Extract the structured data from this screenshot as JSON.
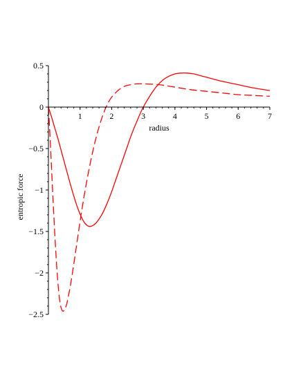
{
  "chart_data": {
    "type": "line",
    "title": "",
    "xlabel": "radius",
    "ylabel": "entropic force",
    "xlim": [
      0,
      7
    ],
    "ylim": [
      -2.5,
      0.5
    ],
    "x_ticks": [
      1,
      2,
      3,
      4,
      5,
      6,
      7
    ],
    "y_ticks": [
      0.5,
      0,
      -0.5,
      -1,
      -1.5,
      -2,
      -2.5
    ],
    "x_tick_labels": [
      "1",
      "2",
      "3",
      "4",
      "5",
      "6",
      "7"
    ],
    "y_tick_labels": [
      "0.5",
      "0",
      "−0.5",
      "−1",
      "−1.5",
      "−2",
      "−2.5"
    ],
    "grid": false,
    "legend": "none",
    "series": [
      {
        "style": "solid",
        "color": "#ff0000",
        "points": [
          [
            0,
            0
          ],
          [
            0.1,
            -0.12
          ],
          [
            0.2,
            -0.25
          ],
          [
            0.3,
            -0.38
          ],
          [
            0.4,
            -0.52
          ],
          [
            0.5,
            -0.66
          ],
          [
            0.6,
            -0.8
          ],
          [
            0.7,
            -0.94
          ],
          [
            0.8,
            -1.07
          ],
          [
            0.9,
            -1.19
          ],
          [
            1.0,
            -1.29
          ],
          [
            1.1,
            -1.37
          ],
          [
            1.2,
            -1.42
          ],
          [
            1.3,
            -1.44
          ],
          [
            1.4,
            -1.43
          ],
          [
            1.5,
            -1.4
          ],
          [
            1.6,
            -1.35
          ],
          [
            1.7,
            -1.29
          ],
          [
            1.8,
            -1.21
          ],
          [
            1.9,
            -1.12
          ],
          [
            2.0,
            -1.02
          ],
          [
            2.1,
            -0.91
          ],
          [
            2.2,
            -0.8
          ],
          [
            2.3,
            -0.69
          ],
          [
            2.4,
            -0.58
          ],
          [
            2.5,
            -0.47
          ],
          [
            2.6,
            -0.36
          ],
          [
            2.7,
            -0.26
          ],
          [
            2.8,
            -0.17
          ],
          [
            2.9,
            -0.08
          ],
          [
            3.0,
            0.0
          ],
          [
            3.2,
            0.13
          ],
          [
            3.4,
            0.24
          ],
          [
            3.6,
            0.32
          ],
          [
            3.8,
            0.37
          ],
          [
            4.0,
            0.4
          ],
          [
            4.2,
            0.41
          ],
          [
            4.4,
            0.41
          ],
          [
            4.6,
            0.4
          ],
          [
            4.8,
            0.38
          ],
          [
            5.0,
            0.36
          ],
          [
            5.5,
            0.31
          ],
          [
            6.0,
            0.27
          ],
          [
            6.5,
            0.23
          ],
          [
            7.0,
            0.2
          ]
        ]
      },
      {
        "style": "dashed",
        "color": "#ff0000",
        "points": [
          [
            0,
            0
          ],
          [
            0.05,
            -0.35
          ],
          [
            0.1,
            -0.75
          ],
          [
            0.15,
            -1.15
          ],
          [
            0.2,
            -1.52
          ],
          [
            0.25,
            -1.85
          ],
          [
            0.3,
            -2.12
          ],
          [
            0.35,
            -2.31
          ],
          [
            0.4,
            -2.42
          ],
          [
            0.45,
            -2.46
          ],
          [
            0.5,
            -2.45
          ],
          [
            0.55,
            -2.41
          ],
          [
            0.6,
            -2.34
          ],
          [
            0.7,
            -2.14
          ],
          [
            0.8,
            -1.9
          ],
          [
            0.9,
            -1.64
          ],
          [
            1.0,
            -1.38
          ],
          [
            1.1,
            -1.14
          ],
          [
            1.2,
            -0.92
          ],
          [
            1.3,
            -0.72
          ],
          [
            1.4,
            -0.54
          ],
          [
            1.5,
            -0.38
          ],
          [
            1.6,
            -0.24
          ],
          [
            1.7,
            -0.12
          ],
          [
            1.8,
            -0.02
          ],
          [
            1.9,
            0.06
          ],
          [
            2.0,
            0.12
          ],
          [
            2.2,
            0.2
          ],
          [
            2.4,
            0.25
          ],
          [
            2.6,
            0.27
          ],
          [
            2.8,
            0.28
          ],
          [
            3.0,
            0.28
          ],
          [
            3.5,
            0.27
          ],
          [
            4.0,
            0.24
          ],
          [
            4.5,
            0.21
          ],
          [
            5.0,
            0.19
          ],
          [
            5.5,
            0.17
          ],
          [
            6.0,
            0.15
          ],
          [
            6.5,
            0.14
          ],
          [
            7.0,
            0.13
          ]
        ]
      }
    ]
  }
}
